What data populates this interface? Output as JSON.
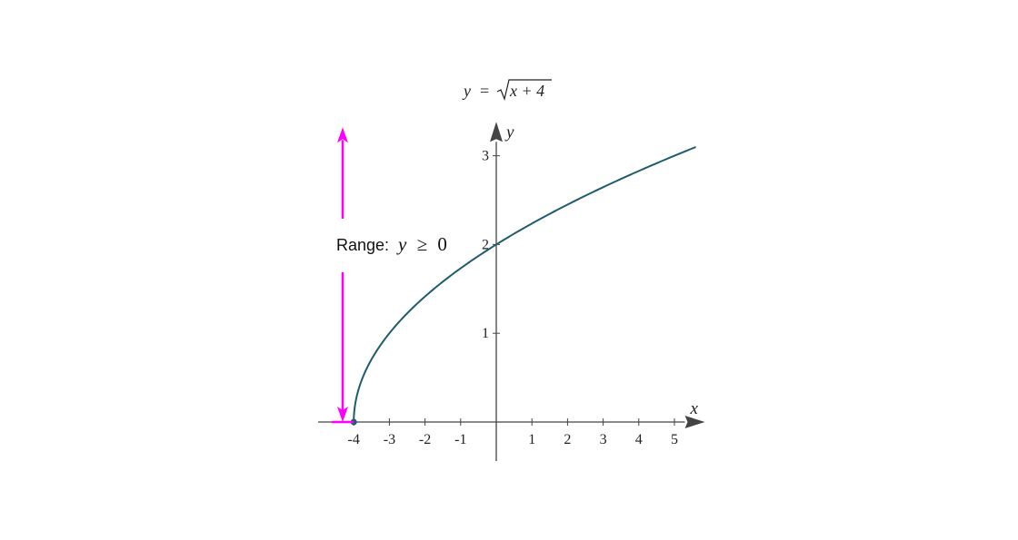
{
  "chart_data": {
    "type": "line",
    "title": {
      "lhs": "y",
      "equals": "=",
      "radicand": "x + 4"
    },
    "xlabel": "x",
    "ylabel": "y",
    "xlim": [
      -5,
      5.6
    ],
    "ylim": [
      -0.44,
      3.3
    ],
    "x_ticks": [
      -4,
      -3,
      -2,
      -1,
      1,
      2,
      3,
      4,
      5
    ],
    "y_ticks": [
      1,
      2,
      3
    ],
    "x_tick_labels": [
      "-4",
      "-3",
      "-2",
      "-1",
      "1",
      "2",
      "3",
      "4",
      "5"
    ],
    "y_tick_labels": [
      "1",
      "2",
      "3"
    ],
    "series": [
      {
        "function": "sqrt(x + 4)",
        "x": [
          -4,
          -3.9,
          -3.75,
          -3.5,
          -3,
          -2.5,
          -2,
          -1.5,
          -1,
          0,
          1,
          2,
          3,
          4,
          5,
          5.6
        ],
        "y": [
          0,
          0.316,
          0.5,
          0.707,
          1,
          1.225,
          1.414,
          1.581,
          1.732,
          2,
          2.236,
          2.449,
          2.646,
          2.828,
          3,
          3.098
        ],
        "color": "#1f5c6e"
      }
    ],
    "start_point": {
      "x": -4,
      "y": 0,
      "color": "#1f5c6e"
    },
    "annotation": {
      "prefix": "Range: ",
      "variable": "y",
      "relation": "≥",
      "bound": "0",
      "color": "#ff00ff",
      "arrow_top_y": 3.3,
      "arrow_bottom_y": 0
    },
    "axis_color": "#444444",
    "grid": false
  }
}
